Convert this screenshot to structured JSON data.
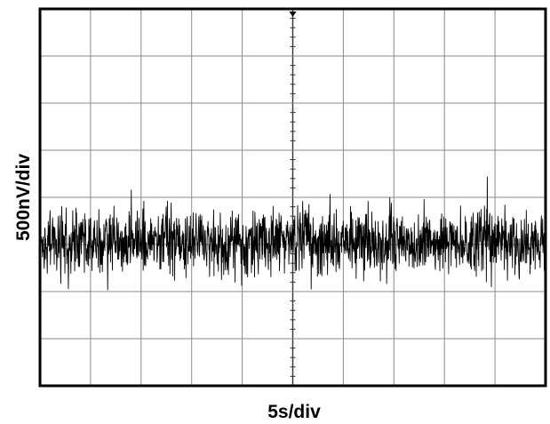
{
  "chart_data": {
    "type": "line",
    "title": "",
    "xlabel": "5s/div",
    "ylabel": "500nV/div",
    "x_divisions": 10,
    "y_divisions": 8,
    "grid": true,
    "trace_color": "#000000",
    "grid_color": "#8a8a8a",
    "trace_level_div": 0.95,
    "noise_pp_div": 2.0,
    "series": [
      {
        "values": []
      }
    ]
  }
}
